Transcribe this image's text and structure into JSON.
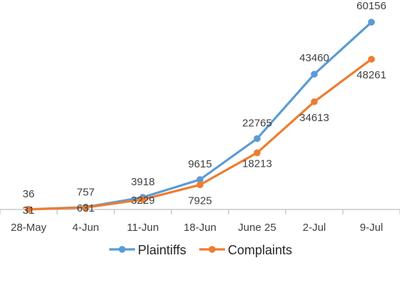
{
  "chart_data": {
    "type": "line",
    "title": "",
    "xlabel": "",
    "ylabel": "",
    "categories": [
      "28-May",
      "4-Jun",
      "11-Jun",
      "18-Jun",
      "June 25",
      "2-Jul",
      "9-Jul"
    ],
    "ylim": [
      0,
      65000
    ],
    "grid": false,
    "legend": "bottom",
    "series": [
      {
        "name": "Plaintiffs",
        "color": "#5B9BD5",
        "values": [
          36,
          757,
          3918,
          9615,
          22765,
          43460,
          60156
        ],
        "labels": [
          "36",
          "757",
          "3918",
          "9615",
          "22765",
          "43460",
          "60156"
        ]
      },
      {
        "name": "Complaints",
        "color": "#ED7D31",
        "values": [
          31,
          631,
          3229,
          7925,
          18213,
          34613,
          48261
        ],
        "labels": [
          "31",
          "631",
          "3229",
          "7925",
          "18213",
          "34613",
          "48261"
        ]
      }
    ]
  }
}
